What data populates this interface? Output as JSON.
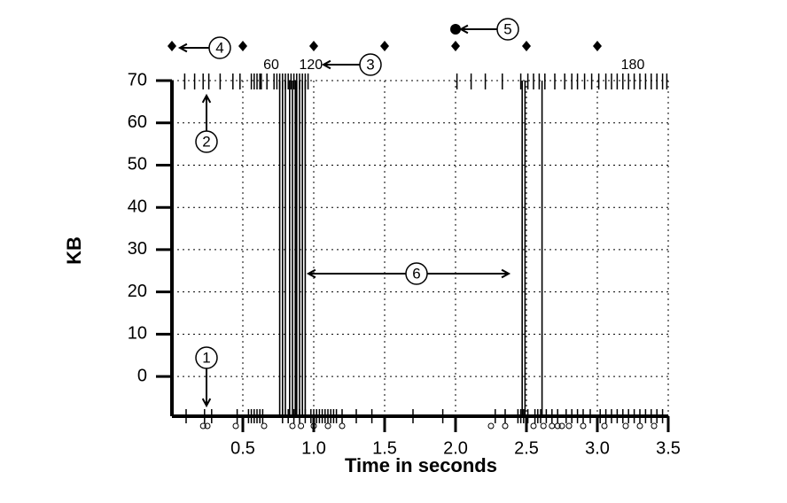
{
  "chart_data": {
    "type": "trace",
    "xlabel": "Time in seconds",
    "ylabel": "KB",
    "xlim": [
      0,
      3.5
    ],
    "ylim": [
      -9.4,
      70
    ],
    "xticks": [
      0.5,
      {
        "value": 1,
        "label": "1.0"
      },
      1.5,
      {
        "value": 2,
        "label": "2.0"
      },
      2.5,
      {
        "value": 3,
        "label": "3.0"
      },
      3.5
    ],
    "yticks": [
      0,
      10,
      20,
      30,
      40,
      50,
      60,
      70
    ],
    "grid": true,
    "sent_x": [
      0.09,
      0.16,
      0.22,
      0.26,
      0.34,
      0.43,
      0.48,
      0.56,
      0.58,
      0.6,
      0.62,
      0.63,
      0.67,
      0.72,
      0.74,
      0.76,
      0.78,
      0.8,
      0.82,
      0.84,
      0.86,
      0.88,
      0.9,
      0.92,
      0.94,
      0.96,
      2.01,
      2.11,
      2.21,
      2.33,
      2.46,
      2.51,
      2.55,
      2.59,
      2.63,
      2.7,
      2.77,
      2.82,
      2.86,
      2.91,
      2.96,
      3.01,
      3.06,
      3.1,
      3.14,
      3.18,
      3.22,
      3.26,
      3.3,
      3.34,
      3.38,
      3.42,
      3.46,
      3.49
    ],
    "ack_x": [
      0.1,
      0.23,
      0.28,
      0.46,
      0.54,
      0.56,
      0.58,
      0.6,
      0.62,
      0.64,
      0.78,
      0.82,
      0.86,
      0.9,
      0.94,
      0.98,
      1.0,
      1.02,
      1.04,
      1.06,
      1.08,
      1.1,
      1.12,
      1.14,
      1.16,
      1.2,
      1.3,
      1.41,
      1.7,
      1.91,
      2.28,
      2.35,
      2.44,
      2.46,
      2.48,
      2.51,
      2.56,
      2.58,
      2.6,
      2.64,
      2.68,
      2.72,
      2.78,
      2.82,
      2.86,
      2.9,
      2.95,
      3.02,
      3.06,
      3.1,
      3.14,
      3.18,
      3.22,
      3.26,
      3.3,
      3.34,
      3.38,
      3.42,
      3.46
    ],
    "circle_x": [
      0.22,
      0.25,
      0.45,
      0.65,
      0.85,
      0.91,
      1.0,
      1.1,
      1.2,
      2.25,
      2.35,
      2.55,
      2.62,
      2.68,
      2.72,
      2.75,
      2.8,
      2.9,
      3.05,
      3.2,
      3.3,
      3.4
    ],
    "vline_x": [
      0.76,
      0.78,
      0.8,
      0.83,
      0.85,
      0.87,
      0.88,
      0.9,
      0.92,
      0.94,
      2.47,
      2.49,
      2.61
    ],
    "diamond_x": [
      0,
      0.5,
      1,
      1.5,
      2,
      2.5,
      3
    ],
    "dot_x": [
      2
    ],
    "segment_x": [
      0.7,
      0.98,
      3.25
    ],
    "segment_labels": [
      60,
      120,
      180
    ],
    "annotations": [
      "1",
      "2",
      "3",
      "4",
      "5",
      "6"
    ]
  }
}
